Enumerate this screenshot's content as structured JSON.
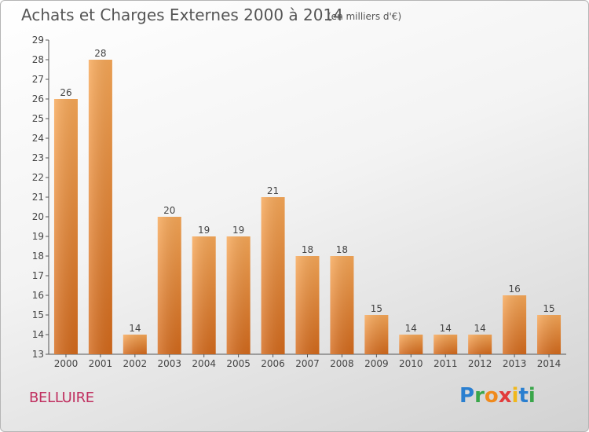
{
  "title": "Achats et Charges Externes 2000 à 2014",
  "subtitle": "(en milliers d'€)",
  "commune": "BELLUIRE",
  "logo": "Proxiti",
  "chart_data": {
    "type": "bar",
    "categories": [
      "2000",
      "2001",
      "2002",
      "2003",
      "2004",
      "2005",
      "2006",
      "2007",
      "2008",
      "2009",
      "2010",
      "2011",
      "2012",
      "2013",
      "2014"
    ],
    "values": [
      26,
      28,
      14,
      20,
      19,
      19,
      21,
      18,
      18,
      15,
      14,
      14,
      14,
      16,
      15
    ],
    "ylim": [
      13,
      29
    ],
    "yticks": [
      13,
      14,
      15,
      16,
      17,
      18,
      19,
      20,
      21,
      22,
      23,
      24,
      25,
      26,
      27,
      28,
      29
    ],
    "xlabel": "",
    "ylabel": "",
    "grid": false,
    "bar_color": "#f0963a"
  }
}
